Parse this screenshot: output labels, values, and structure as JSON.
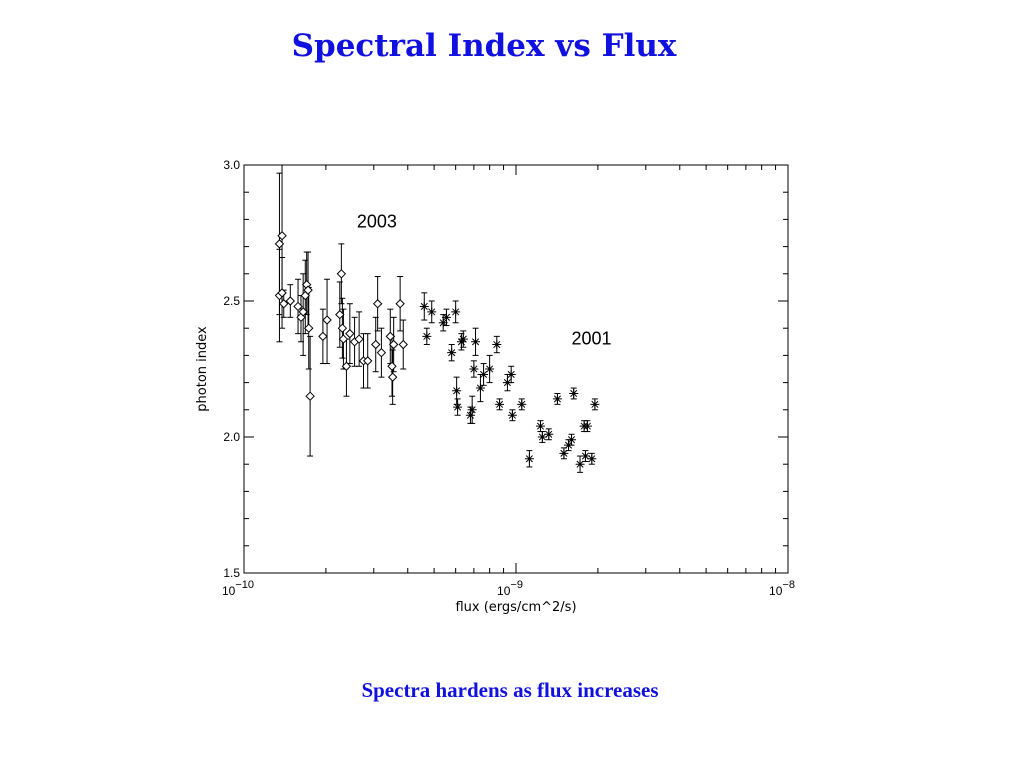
{
  "slide": {
    "title": "Spectral Index vs Flux",
    "caption": "Spectra hardens as flux increases"
  },
  "chart_data": {
    "type": "scatter",
    "xlabel": "flux (ergs/cm^2/s)",
    "ylabel": "photon index",
    "xscale": "log",
    "xlim": [
      1e-10,
      1e-08
    ],
    "ylim": [
      1.5,
      3.0
    ],
    "x_ticks": [
      {
        "value": 1e-10,
        "base": "10",
        "exp": "−10"
      },
      {
        "value": 1e-09,
        "base": "10",
        "exp": "−9"
      },
      {
        "value": 1e-08,
        "base": "10",
        "exp": "−8"
      }
    ],
    "y_ticks": [
      {
        "value": 1.5,
        "label": "1.5"
      },
      {
        "value": 2.0,
        "label": "2.0"
      },
      {
        "value": 2.5,
        "label": "2.5"
      },
      {
        "value": 3.0,
        "label": "3.0"
      }
    ],
    "grid": false,
    "legend": "none",
    "annotations": [
      {
        "text": "2003",
        "x": 2.6e-10,
        "y": 2.77
      },
      {
        "text": "2001",
        "x": 1.6e-09,
        "y": 2.34
      }
    ],
    "series": [
      {
        "name": "2003",
        "marker": "diamond",
        "points": [
          {
            "x": 1.35e-10,
            "y": 2.71,
            "lo": 2.45,
            "hi": 2.97
          },
          {
            "x": 1.38e-10,
            "y": 2.74,
            "lo": 2.49,
            "hi": 3.0
          },
          {
            "x": 1.35e-10,
            "y": 2.52,
            "lo": 2.35,
            "hi": 2.69
          },
          {
            "x": 1.38e-10,
            "y": 2.53,
            "lo": 2.4,
            "hi": 2.66
          },
          {
            "x": 1.4e-10,
            "y": 2.49,
            "lo": 2.44,
            "hi": 2.54
          },
          {
            "x": 1.48e-10,
            "y": 2.5,
            "lo": 2.44,
            "hi": 2.56
          },
          {
            "x": 1.58e-10,
            "y": 2.48,
            "lo": 2.38,
            "hi": 2.58
          },
          {
            "x": 1.62e-10,
            "y": 2.44,
            "lo": 2.35,
            "hi": 2.52
          },
          {
            "x": 1.65e-10,
            "y": 2.46,
            "lo": 2.3,
            "hi": 2.6
          },
          {
            "x": 1.68e-10,
            "y": 2.52,
            "lo": 2.38,
            "hi": 2.65
          },
          {
            "x": 1.7e-10,
            "y": 2.56,
            "lo": 2.45,
            "hi": 2.68
          },
          {
            "x": 1.72e-10,
            "y": 2.54,
            "lo": 2.4,
            "hi": 2.68
          },
          {
            "x": 1.73e-10,
            "y": 2.4,
            "lo": 2.25,
            "hi": 2.55
          },
          {
            "x": 1.75e-10,
            "y": 2.15,
            "lo": 1.93,
            "hi": 2.37
          },
          {
            "x": 1.95e-10,
            "y": 2.37,
            "lo": 2.27,
            "hi": 2.47
          },
          {
            "x": 2.02e-10,
            "y": 2.43,
            "lo": 2.27,
            "hi": 2.58
          },
          {
            "x": 2.25e-10,
            "y": 2.45,
            "lo": 2.33,
            "hi": 2.57
          },
          {
            "x": 2.28e-10,
            "y": 2.6,
            "lo": 2.49,
            "hi": 2.71
          },
          {
            "x": 2.3e-10,
            "y": 2.4,
            "lo": 2.29,
            "hi": 2.51
          },
          {
            "x": 2.32e-10,
            "y": 2.36,
            "lo": 2.25,
            "hi": 2.47
          },
          {
            "x": 2.38e-10,
            "y": 2.26,
            "lo": 2.15,
            "hi": 2.36
          },
          {
            "x": 2.45e-10,
            "y": 2.38,
            "lo": 2.27,
            "hi": 2.49
          },
          {
            "x": 2.55e-10,
            "y": 2.35,
            "lo": 2.26,
            "hi": 2.44
          },
          {
            "x": 2.65e-10,
            "y": 2.36,
            "lo": 2.26,
            "hi": 2.46
          },
          {
            "x": 2.75e-10,
            "y": 2.28,
            "lo": 2.18,
            "hi": 2.38
          },
          {
            "x": 2.85e-10,
            "y": 2.28,
            "lo": 2.18,
            "hi": 2.38
          },
          {
            "x": 3.05e-10,
            "y": 2.34,
            "lo": 2.24,
            "hi": 2.44
          },
          {
            "x": 3.1e-10,
            "y": 2.49,
            "lo": 2.39,
            "hi": 2.59
          },
          {
            "x": 3.2e-10,
            "y": 2.31,
            "lo": 2.22,
            "hi": 2.4
          },
          {
            "x": 3.45e-10,
            "y": 2.37,
            "lo": 2.27,
            "hi": 2.47
          },
          {
            "x": 3.5e-10,
            "y": 2.26,
            "lo": 2.15,
            "hi": 2.37
          },
          {
            "x": 3.52e-10,
            "y": 2.22,
            "lo": 2.12,
            "hi": 2.32
          },
          {
            "x": 3.55e-10,
            "y": 2.34,
            "lo": 2.24,
            "hi": 2.44
          },
          {
            "x": 3.75e-10,
            "y": 2.49,
            "lo": 2.39,
            "hi": 2.59
          },
          {
            "x": 3.85e-10,
            "y": 2.34,
            "lo": 2.25,
            "hi": 2.43
          }
        ]
      },
      {
        "name": "2001",
        "marker": "asterisk",
        "points": [
          {
            "x": 4.6e-10,
            "y": 2.48,
            "lo": 2.43,
            "hi": 2.53
          },
          {
            "x": 4.7e-10,
            "y": 2.37,
            "lo": 2.34,
            "hi": 2.4
          },
          {
            "x": 4.9e-10,
            "y": 2.46,
            "lo": 2.42,
            "hi": 2.5
          },
          {
            "x": 5.4e-10,
            "y": 2.42,
            "lo": 2.39,
            "hi": 2.45
          },
          {
            "x": 5.55e-10,
            "y": 2.44,
            "lo": 2.41,
            "hi": 2.47
          },
          {
            "x": 5.8e-10,
            "y": 2.31,
            "lo": 2.28,
            "hi": 2.34
          },
          {
            "x": 6e-10,
            "y": 2.46,
            "lo": 2.42,
            "hi": 2.5
          },
          {
            "x": 6.05e-10,
            "y": 2.17,
            "lo": 2.12,
            "hi": 2.22
          },
          {
            "x": 6.1e-10,
            "y": 2.11,
            "lo": 2.08,
            "hi": 2.14
          },
          {
            "x": 6.3e-10,
            "y": 2.35,
            "lo": 2.32,
            "hi": 2.38
          },
          {
            "x": 6.4e-10,
            "y": 2.36,
            "lo": 2.33,
            "hi": 2.39
          },
          {
            "x": 6.8e-10,
            "y": 2.08,
            "lo": 2.05,
            "hi": 2.11
          },
          {
            "x": 6.9e-10,
            "y": 2.1,
            "lo": 2.05,
            "hi": 2.15
          },
          {
            "x": 7e-10,
            "y": 2.25,
            "lo": 2.22,
            "hi": 2.28
          },
          {
            "x": 7.1e-10,
            "y": 2.35,
            "lo": 2.3,
            "hi": 2.4
          },
          {
            "x": 7.4e-10,
            "y": 2.18,
            "lo": 2.13,
            "hi": 2.23
          },
          {
            "x": 7.6e-10,
            "y": 2.23,
            "lo": 2.19,
            "hi": 2.27
          },
          {
            "x": 8e-10,
            "y": 2.25,
            "lo": 2.2,
            "hi": 2.3
          },
          {
            "x": 8.5e-10,
            "y": 2.34,
            "lo": 2.31,
            "hi": 2.37
          },
          {
            "x": 8.7e-10,
            "y": 2.12,
            "lo": 2.1,
            "hi": 2.14
          },
          {
            "x": 9.3e-10,
            "y": 2.2,
            "lo": 2.17,
            "hi": 2.23
          },
          {
            "x": 9.6e-10,
            "y": 2.23,
            "lo": 2.2,
            "hi": 2.26
          },
          {
            "x": 9.7e-10,
            "y": 2.08,
            "lo": 2.06,
            "hi": 2.1
          },
          {
            "x": 1.05e-09,
            "y": 2.12,
            "lo": 2.1,
            "hi": 2.14
          },
          {
            "x": 1.12e-09,
            "y": 1.92,
            "lo": 1.89,
            "hi": 1.95
          },
          {
            "x": 1.23e-09,
            "y": 2.04,
            "lo": 2.02,
            "hi": 2.06
          },
          {
            "x": 1.25e-09,
            "y": 2.0,
            "lo": 1.98,
            "hi": 2.02
          },
          {
            "x": 1.32e-09,
            "y": 2.01,
            "lo": 1.99,
            "hi": 2.03
          },
          {
            "x": 1.42e-09,
            "y": 2.14,
            "lo": 2.12,
            "hi": 2.16
          },
          {
            "x": 1.5e-09,
            "y": 1.94,
            "lo": 1.92,
            "hi": 1.96
          },
          {
            "x": 1.56e-09,
            "y": 1.97,
            "lo": 1.95,
            "hi": 1.99
          },
          {
            "x": 1.6e-09,
            "y": 1.99,
            "lo": 1.97,
            "hi": 2.01
          },
          {
            "x": 1.63e-09,
            "y": 2.16,
            "lo": 2.14,
            "hi": 2.18
          },
          {
            "x": 1.72e-09,
            "y": 1.9,
            "lo": 1.87,
            "hi": 1.93
          },
          {
            "x": 1.78e-09,
            "y": 2.04,
            "lo": 2.02,
            "hi": 2.06
          },
          {
            "x": 1.8e-09,
            "y": 1.93,
            "lo": 1.91,
            "hi": 1.95
          },
          {
            "x": 1.83e-09,
            "y": 2.04,
            "lo": 2.02,
            "hi": 2.06
          },
          {
            "x": 1.9e-09,
            "y": 1.92,
            "lo": 1.9,
            "hi": 1.94
          },
          {
            "x": 1.95e-09,
            "y": 2.12,
            "lo": 2.1,
            "hi": 2.14
          }
        ]
      }
    ]
  }
}
